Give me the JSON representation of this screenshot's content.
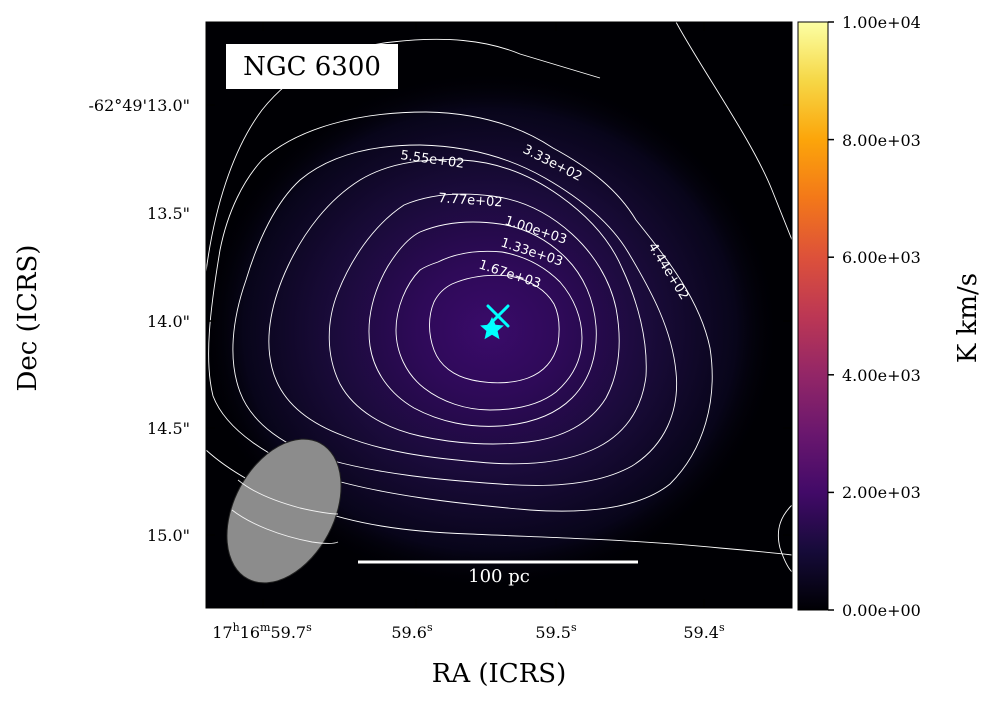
{
  "chart_data": {
    "type": "heatmap",
    "title": "NGC 6300",
    "xlabel": "RA (ICRS)",
    "ylabel": "Dec (ICRS)",
    "colorbar": {
      "label": "K km/s",
      "colormap": "inferno",
      "vmin": 0,
      "vmax": 10000,
      "ticks": [
        "0.00e+00",
        "2.00e+03",
        "4.00e+03",
        "6.00e+03",
        "8.00e+03",
        "1.00e+04"
      ]
    },
    "x_ticks": [
      {
        "h": "17",
        "m": "16",
        "s": "59.7",
        "label": "59.7s"
      },
      {
        "s": "59.6",
        "label": "59.6s"
      },
      {
        "s": "59.5",
        "label": "59.5s"
      },
      {
        "s": "59.4",
        "label": "59.4s"
      }
    ],
    "y_ticks": [
      {
        "value": "13.0",
        "label": "-62°49'13.0\""
      },
      {
        "value": "13.5",
        "label": "13.5\""
      },
      {
        "value": "14.0",
        "label": "14.0\""
      },
      {
        "value": "14.5",
        "label": "14.5\""
      },
      {
        "value": "15.0",
        "label": "15.0\""
      }
    ],
    "contour_levels": [
      {
        "level": 333,
        "label": "3.33e+02"
      },
      {
        "level": 444,
        "label": "4.44e+02"
      },
      {
        "level": 555,
        "label": "5.55e+02"
      },
      {
        "level": 777,
        "label": "7.77e+02"
      },
      {
        "level": 1000,
        "label": "1.00e+03"
      },
      {
        "level": 1330,
        "label": "1.33e+03"
      },
      {
        "level": 1670,
        "label": "1.67e+03"
      }
    ],
    "scalebar_label": "100 pc",
    "markers": [
      {
        "type": "x",
        "color": "#00ffff",
        "ra_s": 59.537,
        "dec_s": 13.97
      },
      {
        "type": "star",
        "color": "#00ffff",
        "ra_s": 59.541,
        "dec_s": 14.04
      }
    ],
    "beam": {
      "color": "#8c8c8c",
      "shape": "ellipse"
    },
    "contour_color": "#ffffff",
    "grid": false
  }
}
